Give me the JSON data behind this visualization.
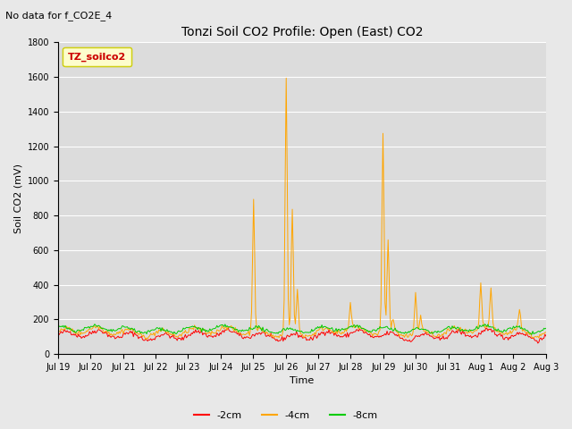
{
  "title": "Tonzi Soil CO2 Profile: Open (East) CO2",
  "subtitle": "No data for f_CO2E_4",
  "ylabel": "Soil CO2 (mV)",
  "xlabel": "Time",
  "ylim": [
    0,
    1800
  ],
  "legend_label": "TZ_soilco2",
  "series": {
    "neg2cm": {
      "label": "-2cm",
      "color": "#ff0000"
    },
    "neg4cm": {
      "label": "-4cm",
      "color": "#ffa500"
    },
    "neg8cm": {
      "label": "-8cm",
      "color": "#00cc00"
    }
  },
  "fig_bg": "#e8e8e8",
  "plot_bg": "#dcdcdc",
  "tick_labels": [
    "Jul 19",
    "Jul 20",
    "Jul 21",
    "Jul 22",
    "Jul 23",
    "Jul 24",
    "Jul 25",
    "Jul 26",
    "Jul 27",
    "Jul 28",
    "Jul 29",
    "Jul 30",
    "Jul 31",
    "Aug 1",
    "Aug 2",
    "Aug 3"
  ],
  "title_fontsize": 10,
  "axis_label_fontsize": 8,
  "tick_fontsize": 7,
  "legend_fontsize": 8
}
